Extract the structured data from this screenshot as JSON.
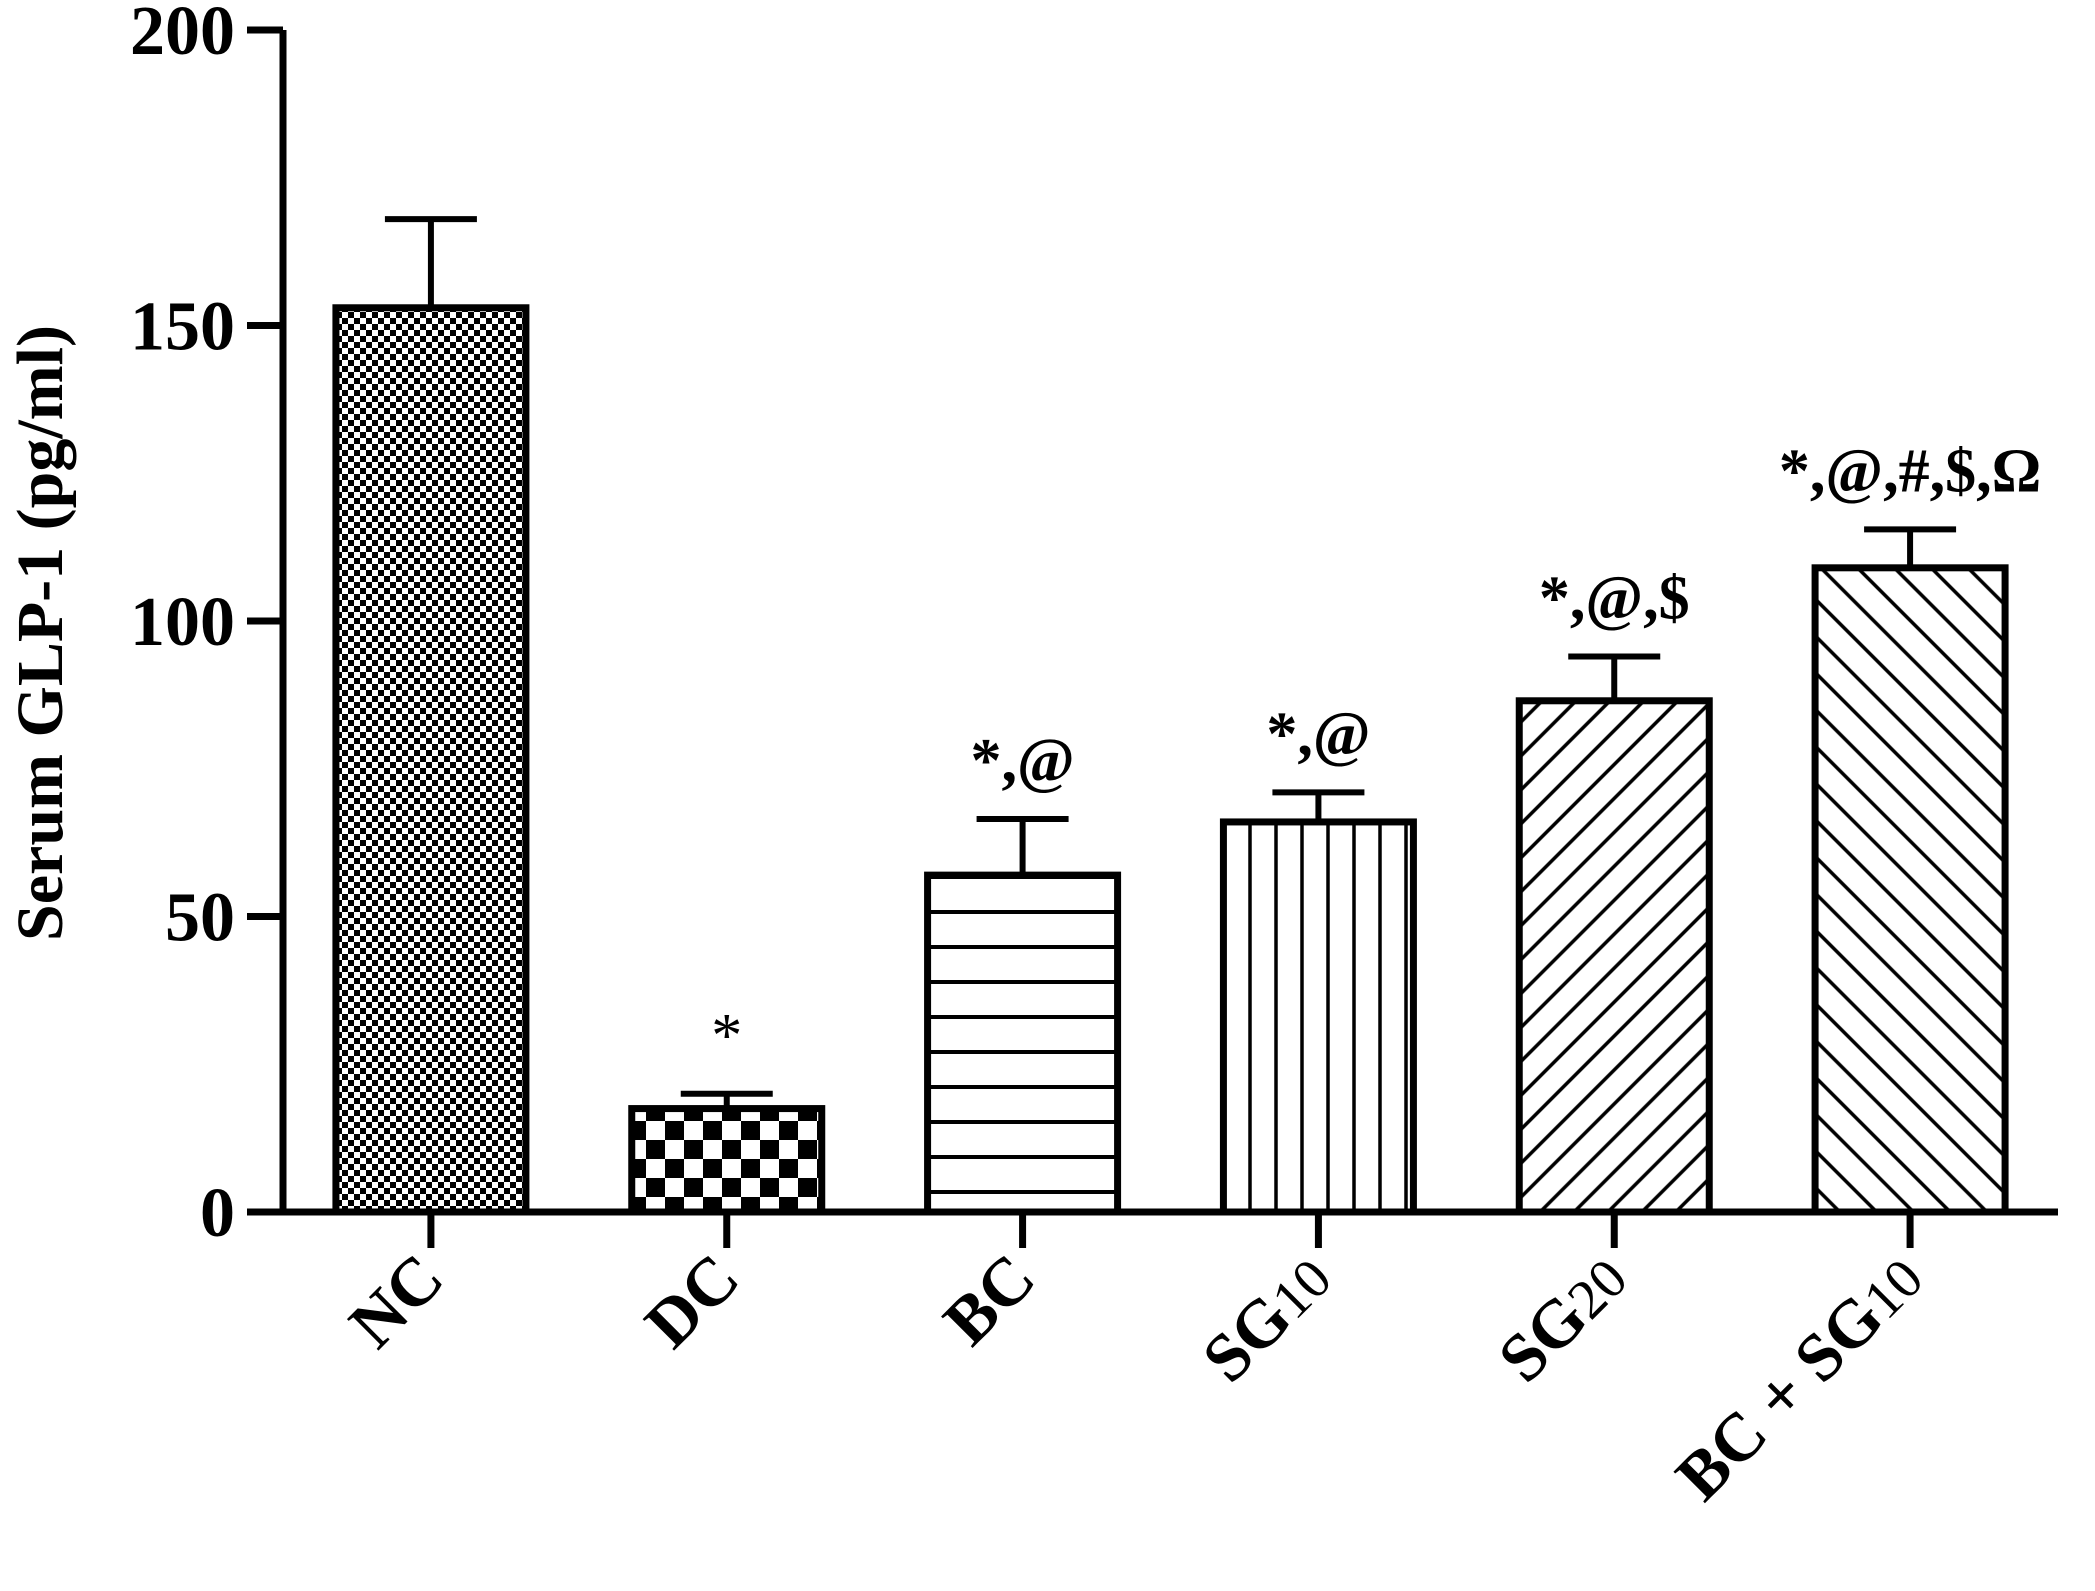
{
  "chart_data": {
    "type": "bar",
    "ylabel": "Serum GLP-1 (pg/ml)",
    "ylim": [
      0,
      200
    ],
    "yticks": [
      0,
      50,
      100,
      150,
      200
    ],
    "grid": false,
    "legend": "none",
    "bars": [
      {
        "label": "NC",
        "sub": "",
        "value": 153,
        "error": 15,
        "annotation": "",
        "pattern": "fine-check"
      },
      {
        "label": "DC",
        "sub": "",
        "value": 17.5,
        "error": 2.5,
        "annotation": "*",
        "pattern": "coarse-check"
      },
      {
        "label": "BC",
        "sub": "",
        "value": 57,
        "error": 9.5,
        "annotation": "*,@",
        "pattern": "horizontal"
      },
      {
        "label": "SG",
        "sub": "10",
        "value": 66,
        "error": 5,
        "annotation": "*,@",
        "pattern": "vertical"
      },
      {
        "label": "SG",
        "sub": "20",
        "value": 86.5,
        "error": 7.5,
        "annotation": "*,@,$",
        "pattern": "diag-up"
      },
      {
        "label": "BC + SG",
        "sub": "10",
        "value": 109,
        "error": 6.5,
        "annotation": "*,@,#,$,Ω",
        "pattern": "diag-down"
      }
    ],
    "colors": {
      "stroke": "#000000",
      "fill": "#ffffff"
    }
  }
}
